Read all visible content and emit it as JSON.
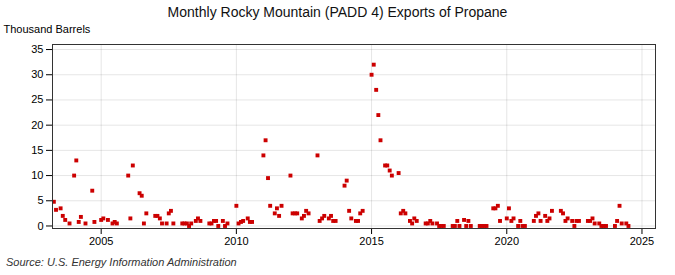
{
  "chart_data": {
    "type": "scatter",
    "title": "Monthly Rocky Mountain (PADD 4) Exports of Propane",
    "ylabel": "Thousand Barrels",
    "source": "Source: U.S. Energy Information Administration",
    "xlim": [
      2003.2,
      2025.5
    ],
    "ylim": [
      -0.5,
      36
    ],
    "xticks": [
      2005,
      2010,
      2015,
      2020,
      2025
    ],
    "yticks": [
      0,
      5,
      10,
      15,
      20,
      25,
      30,
      35
    ],
    "grid": true,
    "color": "#cc0000",
    "marker": "square",
    "x": [
      2003.25,
      2003.33,
      2003.5,
      2003.58,
      2003.67,
      2003.83,
      2004.0,
      2004.08,
      2004.17,
      2004.25,
      2004.42,
      2004.67,
      2004.75,
      2005.0,
      2005.08,
      2005.25,
      2005.42,
      2005.5,
      2005.58,
      2006.0,
      2006.08,
      2006.17,
      2006.42,
      2006.5,
      2006.58,
      2006.67,
      2007.0,
      2007.08,
      2007.17,
      2007.25,
      2007.42,
      2007.5,
      2007.58,
      2007.67,
      2008.0,
      2008.08,
      2008.17,
      2008.25,
      2008.33,
      2008.5,
      2008.58,
      2008.67,
      2009.0,
      2009.08,
      2009.17,
      2009.25,
      2009.33,
      2009.5,
      2009.58,
      2009.67,
      2010.0,
      2010.08,
      2010.17,
      2010.25,
      2010.42,
      2010.5,
      2010.58,
      2011.0,
      2011.08,
      2011.17,
      2011.25,
      2011.42,
      2011.5,
      2011.58,
      2011.67,
      2012.0,
      2012.08,
      2012.17,
      2012.25,
      2012.42,
      2012.5,
      2012.58,
      2012.67,
      2013.0,
      2013.08,
      2013.17,
      2013.25,
      2013.42,
      2013.5,
      2013.58,
      2013.67,
      2014.0,
      2014.08,
      2014.17,
      2014.25,
      2014.42,
      2014.5,
      2014.58,
      2014.67,
      2015.0,
      2015.08,
      2015.17,
      2015.25,
      2015.33,
      2015.5,
      2015.58,
      2015.67,
      2015.75,
      2016.0,
      2016.08,
      2016.17,
      2016.25,
      2016.42,
      2016.5,
      2016.58,
      2016.67,
      2017.0,
      2017.08,
      2017.17,
      2017.25,
      2017.42,
      2017.5,
      2017.58,
      2017.67,
      2018.0,
      2018.08,
      2018.17,
      2018.25,
      2018.42,
      2018.5,
      2018.58,
      2018.67,
      2019.0,
      2019.08,
      2019.17,
      2019.25,
      2019.5,
      2019.58,
      2019.67,
      2019.75,
      2020.0,
      2020.08,
      2020.17,
      2020.25,
      2020.42,
      2020.5,
      2020.58,
      2020.67,
      2021.0,
      2021.08,
      2021.17,
      2021.25,
      2021.42,
      2021.5,
      2021.58,
      2021.67,
      2022.0,
      2022.08,
      2022.17,
      2022.25,
      2022.42,
      2022.5,
      2022.58,
      2022.67,
      2023.0,
      2023.08,
      2023.17,
      2023.25,
      2023.42,
      2023.5,
      2023.58,
      2023.67,
      2024.0,
      2024.08,
      2024.17,
      2024.25,
      2024.42,
      2024.5
    ],
    "values": [
      4.8,
      3.2,
      3.5,
      2.0,
      1.2,
      0.5,
      10.0,
      13.0,
      0.8,
      1.8,
      0.5,
      7.0,
      0.8,
      1.2,
      1.5,
      1.2,
      0.5,
      0.8,
      0.5,
      10.0,
      1.5,
      12.0,
      6.5,
      6.0,
      0.5,
      2.5,
      2.0,
      2.0,
      1.5,
      0.5,
      0.5,
      2.5,
      3.0,
      0.5,
      0.5,
      0.5,
      0.5,
      0.0,
      0.5,
      1.0,
      1.5,
      1.0,
      0.5,
      0.5,
      1.0,
      1.0,
      0.0,
      1.0,
      0.0,
      0.5,
      4.0,
      0.5,
      0.8,
      1.0,
      1.5,
      0.8,
      0.8,
      14.0,
      17.0,
      9.5,
      4.0,
      2.5,
      3.5,
      2.0,
      4.0,
      10.0,
      2.5,
      2.5,
      2.5,
      1.5,
      2.0,
      3.0,
      2.5,
      14.0,
      1.0,
      1.5,
      2.0,
      1.5,
      2.0,
      1.0,
      1.0,
      8.0,
      9.0,
      3.0,
      1.5,
      1.0,
      1.0,
      2.5,
      3.0,
      30.0,
      32.0,
      27.0,
      22.0,
      17.0,
      12.0,
      12.0,
      11.0,
      10.0,
      10.5,
      2.5,
      3.0,
      2.5,
      1.0,
      0.5,
      1.5,
      1.0,
      0.5,
      0.5,
      1.0,
      0.5,
      0.5,
      0.0,
      0.0,
      0.0,
      0.0,
      0.0,
      1.0,
      0.0,
      1.2,
      0.0,
      1.0,
      0.0,
      0.0,
      0.0,
      0.0,
      0.0,
      3.5,
      3.5,
      4.0,
      1.0,
      1.5,
      3.5,
      1.0,
      1.5,
      0.0,
      1.0,
      0.0,
      0.0,
      1.0,
      2.0,
      2.5,
      1.0,
      2.0,
      1.0,
      1.5,
      3.0,
      3.0,
      2.5,
      1.0,
      1.5,
      1.0,
      0.0,
      1.0,
      1.0,
      1.0,
      1.0,
      1.5,
      0.5,
      0.5,
      0.0,
      0.0,
      0.0,
      0.0,
      1.0,
      4.0,
      0.5,
      0.5,
      0.0
    ]
  }
}
